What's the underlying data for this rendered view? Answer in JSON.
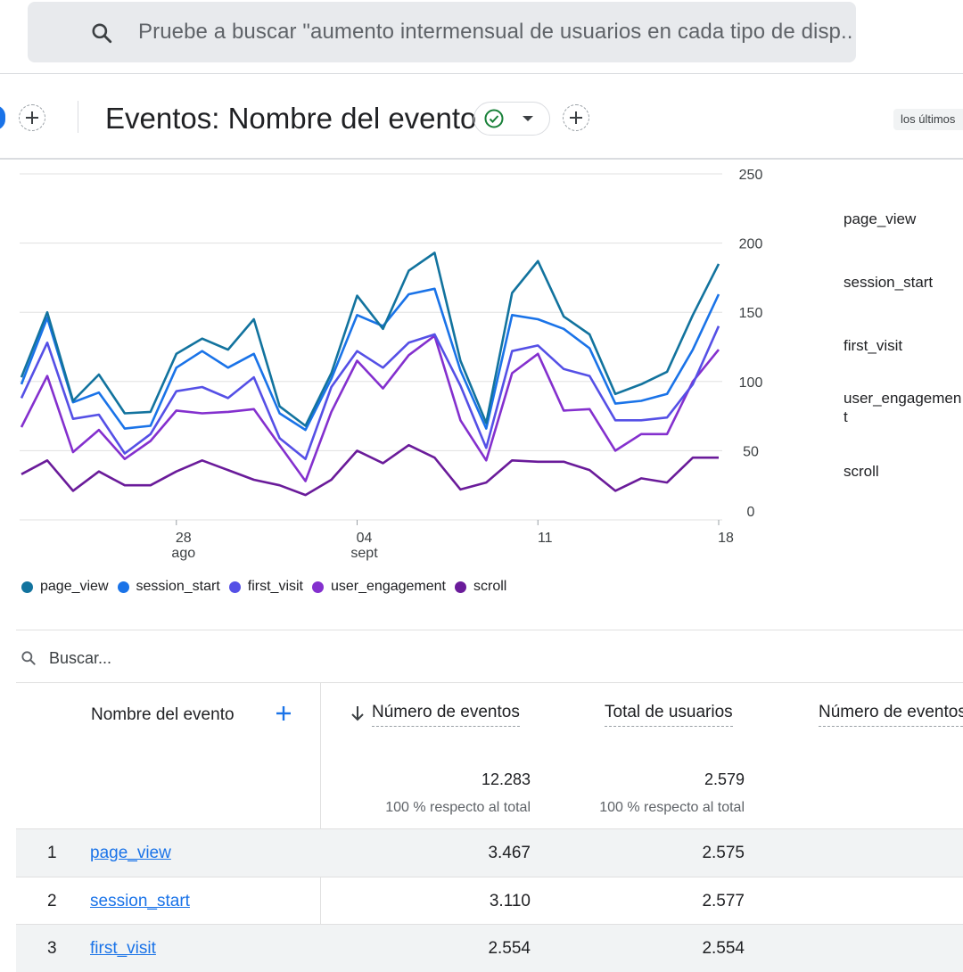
{
  "search": {
    "placeholder": "Pruebe a buscar \"aumento intermensual de usuarios en cada tipo de disp..."
  },
  "card": {
    "title": "Eventos: Nombre del evento",
    "date_range": "los últimos"
  },
  "chart_data": {
    "type": "line",
    "x_ticks": [
      {
        "label": "28",
        "sub": "ago",
        "index": 6
      },
      {
        "label": "04",
        "sub": "sept",
        "index": 13
      },
      {
        "label": "11",
        "sub": "",
        "index": 20
      },
      {
        "label": "18",
        "sub": "",
        "index": 27
      }
    ],
    "y_ticks": [
      0,
      50,
      100,
      150,
      200,
      250
    ],
    "ylim": [
      0,
      250
    ],
    "grid": true,
    "legend_position": "bottom",
    "series": [
      {
        "name": "page_view",
        "color": "#12739e",
        "values": [
          103,
          150,
          86,
          105,
          77,
          78,
          120,
          131,
          123,
          145,
          82,
          68,
          106,
          162,
          138,
          180,
          193,
          115,
          70,
          164,
          187,
          147,
          134,
          91,
          98,
          107,
          148,
          185
        ]
      },
      {
        "name": "session_start",
        "color": "#1a73e8",
        "values": [
          98,
          146,
          85,
          92,
          66,
          68,
          110,
          122,
          110,
          120,
          77,
          65,
          102,
          148,
          140,
          163,
          167,
          108,
          66,
          148,
          145,
          138,
          124,
          84,
          86,
          91,
          123,
          163
        ]
      },
      {
        "name": "first_visit",
        "color": "#5550e6",
        "values": [
          88,
          128,
          73,
          76,
          48,
          62,
          93,
          96,
          88,
          103,
          59,
          44,
          96,
          122,
          110,
          128,
          134,
          97,
          52,
          122,
          126,
          109,
          104,
          72,
          72,
          74,
          98,
          140
        ]
      },
      {
        "name": "user_engagement",
        "color": "#8430ce",
        "values": [
          67,
          104,
          49,
          65,
          44,
          57,
          79,
          77,
          78,
          80,
          54,
          28,
          78,
          115,
          95,
          119,
          133,
          72,
          43,
          106,
          120,
          79,
          80,
          50,
          62,
          62,
          100,
          123
        ]
      },
      {
        "name": "scroll",
        "color": "#6a1b9a",
        "values": [
          33,
          43,
          21,
          35,
          25,
          25,
          35,
          43,
          36,
          29,
          25,
          18,
          29,
          50,
          41,
          54,
          45,
          22,
          27,
          43,
          42,
          42,
          36,
          21,
          30,
          27,
          45,
          45
        ]
      }
    ]
  },
  "right_labels": [
    "page_view",
    "session_start",
    "first_visit",
    "user_engagement",
    "scroll"
  ],
  "table": {
    "search_placeholder": "Buscar...",
    "col_name": "Nombre del evento",
    "col_events": "Número de eventos",
    "col_users": "Total de usuarios",
    "col_events_per_user": "Número de eventos",
    "totals": {
      "events": "12.283",
      "events_sub": "100 % respecto al total",
      "users": "2.579",
      "users_sub": "100 % respecto al total"
    },
    "rows": [
      {
        "index": "1",
        "name": "page_view",
        "events": "3.467",
        "users": "2.575"
      },
      {
        "index": "2",
        "name": "session_start",
        "events": "3.110",
        "users": "2.577"
      },
      {
        "index": "3",
        "name": "first_visit",
        "events": "2.554",
        "users": "2.554"
      }
    ]
  }
}
